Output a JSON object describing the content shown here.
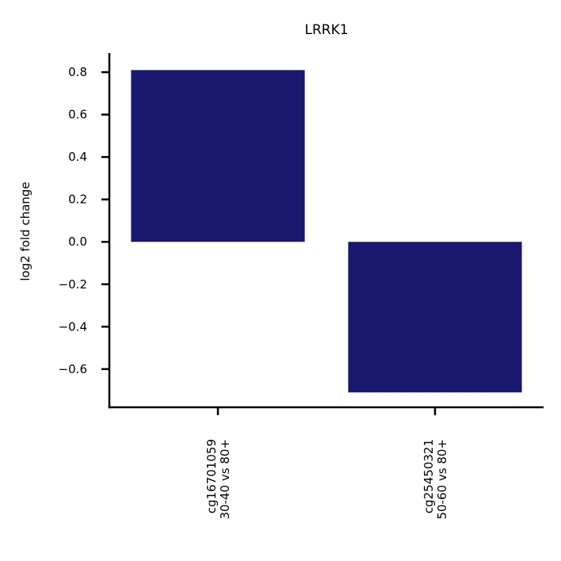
{
  "chart_data": {
    "type": "bar",
    "title": "LRRK1",
    "xlabel": "",
    "ylabel": "log2 fold change",
    "categories": [
      [
        "cg16701059",
        "30-40 vs 80+"
      ],
      [
        "cg25450321",
        "50-60 vs 80+"
      ]
    ],
    "values": [
      0.81,
      -0.71
    ],
    "ylim": [
      -0.78,
      0.89
    ],
    "yticks": [
      0.8,
      0.6,
      0.4,
      0.2,
      0.0,
      -0.2,
      -0.4,
      -0.6
    ],
    "ytick_labels": [
      "0.8",
      "0.6",
      "0.4",
      "0.2",
      "0.0",
      "−0.2",
      "−0.4",
      "−0.6"
    ],
    "bar_color": "#191970",
    "grid": false,
    "spines": "left-bottom"
  }
}
